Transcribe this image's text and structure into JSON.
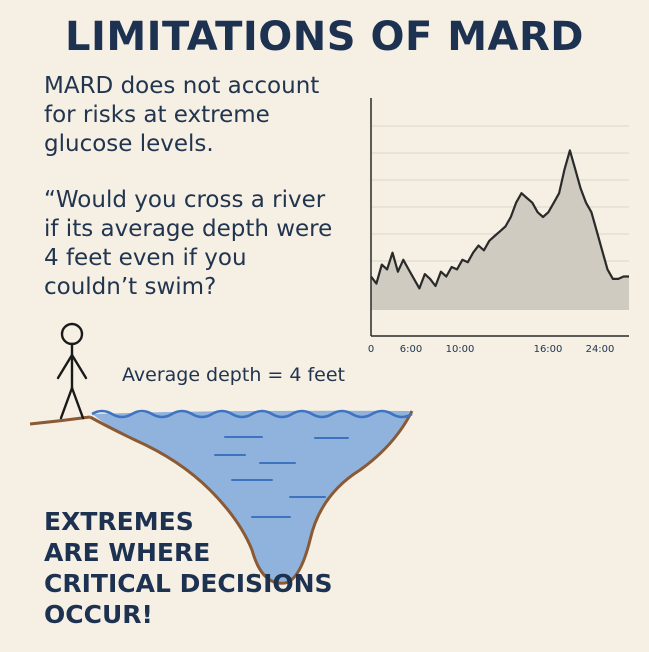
{
  "title": "LIMITATIONS OF MARD",
  "intro_lines": [
    "MARD does not account",
    "for risks at extreme",
    "glucose levels."
  ],
  "quote_lines": [
    "“Would you cross a river",
    "if its average depth were",
    "4 feet even if you",
    "couldn’t swim?"
  ],
  "depth_label": "Average depth = 4 feet",
  "extremes_lines": [
    "EXTREMES",
    "ARE WHERE",
    "CRITICAL DECISIONS",
    "OCCUR!"
  ],
  "colors": {
    "text": "#1d3150",
    "background": "#f5efe4",
    "water": "#8fb3dd",
    "water_line": "#3f73bf",
    "riverbank": "#8a5a34",
    "chart_fill": "#cfcbc1"
  },
  "chart_data": {
    "type": "area",
    "x_tick_labels": [
      "0",
      "6:00",
      "10:00",
      "16:00",
      "24:00"
    ],
    "x": [
      0,
      0.5,
      1,
      1.5,
      2,
      2.5,
      3,
      3.5,
      4,
      4.5,
      5,
      5.5,
      6,
      6.5,
      7,
      7.5,
      8,
      8.5,
      9,
      9.5,
      10,
      10.5,
      11,
      11.5,
      12,
      12.5,
      13,
      13.5,
      14,
      14.5,
      15,
      15.5,
      16,
      16.5,
      17,
      17.5,
      18,
      18.5,
      19,
      19.5,
      20,
      20.5,
      21,
      21.5,
      22,
      22.5,
      23,
      23.5,
      24
    ],
    "values": [
      45,
      42,
      50,
      48,
      55,
      47,
      52,
      48,
      44,
      40,
      46,
      44,
      41,
      47,
      45,
      49,
      48,
      52,
      51,
      55,
      58,
      56,
      60,
      62,
      64,
      66,
      70,
      76,
      80,
      78,
      76,
      72,
      70,
      72,
      76,
      80,
      90,
      98,
      90,
      82,
      76,
      72,
      64,
      56,
      48,
      44,
      44,
      45,
      45
    ],
    "ylim": [
      20,
      120
    ],
    "grid": true,
    "xlabel": "",
    "ylabel": "",
    "title": ""
  }
}
